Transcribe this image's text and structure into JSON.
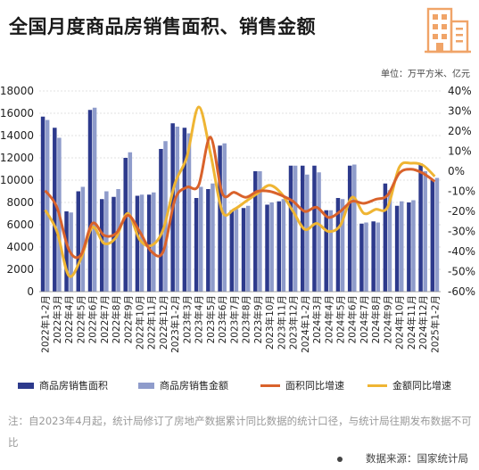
{
  "header": {
    "title": "全国月度商品房销售面积、销售金额"
  },
  "unit_text": "单位：万平方米、亿元",
  "note": "注：自2023年4月起，统计局修订了房地产数据累计同比数据的统计口径，与统计局往期发布数据不可比",
  "source": "数据来源：国家统计局",
  "icons": {
    "logo": "buildings-icon"
  },
  "colors": {
    "area_bar": "#2d3a8c",
    "amount_bar": "#8f9ccb",
    "area_line": "#d9622b",
    "amount_line": "#efb533",
    "logo": "#f0a468"
  },
  "chart_data": {
    "type": "bar",
    "categories": [
      "2022年1-2月",
      "2022年3月",
      "2022年4月",
      "2022年5月",
      "2022年6月",
      "2022年7月",
      "2022年8月",
      "2022年9月",
      "2022年10月",
      "2022年11月",
      "2022年12月",
      "2023年1-2月",
      "2023年3月",
      "2023年4月",
      "2023年5月",
      "2023年6月",
      "2023年7月",
      "2023年8月",
      "2023年9月",
      "2023年10月",
      "2023年11月",
      "2023年12月",
      "2024年1-2月",
      "2024年3月",
      "2024年4月",
      "2024年5月",
      "2024年6月",
      "2024年7月",
      "2024年8月",
      "2024年9月",
      "2024年10月",
      "2024年11月",
      "2024年12月",
      "2025年1-2月"
    ],
    "series": [
      {
        "name": "商品房销售面积",
        "kind": "bar",
        "axis": "left",
        "values": [
          15700,
          14700,
          7200,
          9000,
          16300,
          8300,
          8500,
          12000,
          8600,
          8700,
          12800,
          15100,
          14700,
          8400,
          9200,
          13100,
          7300,
          7500,
          10800,
          7800,
          8100,
          11300,
          11300,
          11300,
          7300,
          8400,
          11300,
          6100,
          6300,
          9700,
          7700,
          8000,
          11500,
          10000
        ]
      },
      {
        "name": "商品房销售金额",
        "kind": "bar",
        "axis": "left",
        "values": [
          15400,
          13800,
          7100,
          9400,
          16500,
          9000,
          9200,
          12500,
          8700,
          8900,
          13500,
          14800,
          14200,
          9400,
          9700,
          13300,
          7400,
          7700,
          10800,
          8000,
          8300,
          11300,
          10500,
          10700,
          7300,
          8300,
          11400,
          6200,
          6200,
          9100,
          8100,
          8200,
          10800,
          10200
        ]
      },
      {
        "name": "面积同比增速",
        "kind": "line",
        "axis": "right",
        "values": [
          -9.6,
          -18.0,
          -39.0,
          -42.0,
          -26.0,
          -32.0,
          -31.0,
          -22.0,
          -30.0,
          -40.0,
          -40.0,
          -14.0,
          -8.0,
          -7.0,
          17.0,
          -11.0,
          -10.5,
          -13.0,
          -10.0,
          -10.0,
          -12.0,
          -15.0,
          -20.0,
          -18.0,
          -23.0,
          -20.0,
          -15.0,
          -16.0,
          -14.0,
          -12.0,
          -1.0,
          1.0,
          -1.0,
          -5.1
        ]
      },
      {
        "name": "金额同比增速",
        "kind": "line",
        "axis": "right",
        "values": [
          -19.3,
          -30.0,
          -52.0,
          -44.0,
          -28.0,
          -36.0,
          -33.0,
          -21.0,
          -34.0,
          -37.0,
          -29.0,
          -6.0,
          7.0,
          32.0,
          9.0,
          -20.0,
          -19.0,
          -15.0,
          -11.0,
          -7.0,
          -11.0,
          -20.0,
          -29.0,
          -26.0,
          -30.0,
          -27.0,
          -13.0,
          -21.0,
          -19.0,
          -18.0,
          2.0,
          4.0,
          3.0,
          -2.6
        ]
      }
    ],
    "ylim_left": [
      0,
      18000
    ],
    "yticks_left": [
      0,
      2000,
      4000,
      6000,
      8000,
      10000,
      12000,
      14000,
      16000,
      18000
    ],
    "ylim_right": [
      -60,
      40
    ],
    "yticks_right": [
      "-60%",
      "-50%",
      "-40%",
      "-30%",
      "-20%",
      "-10%",
      "0%",
      "10%",
      "20%",
      "30%",
      "40%"
    ],
    "legend": [
      "商品房销售面积",
      "商品房销售金额",
      "面积同比增速",
      "金额同比增速"
    ],
    "legend_position": "bottom",
    "grid": true
  }
}
